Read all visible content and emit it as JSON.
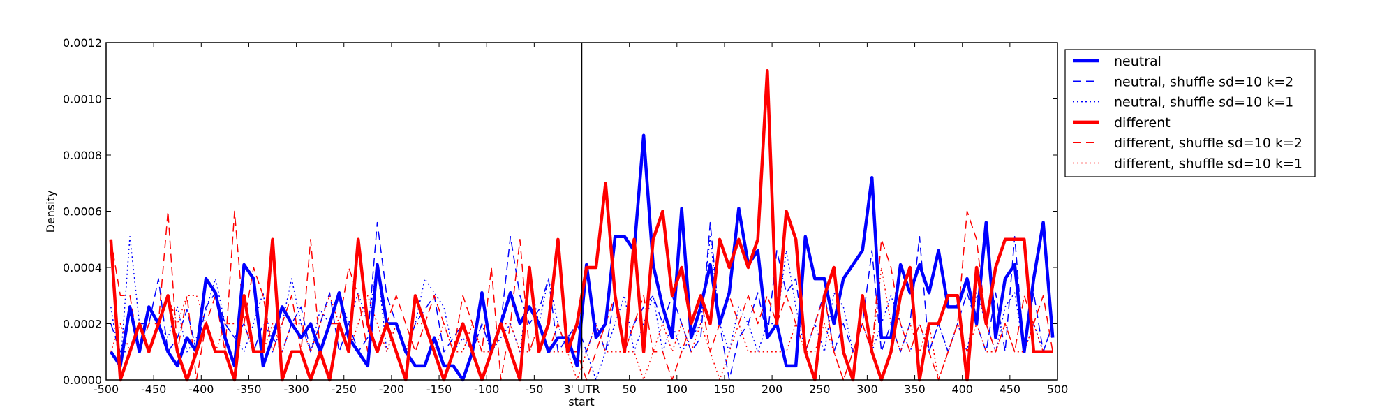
{
  "chart_data": {
    "type": "line",
    "xlabel": "start",
    "ylabel": "Density",
    "xlim": [
      -500,
      500
    ],
    "ylim": [
      0,
      0.0012
    ],
    "x_ticks": [
      {
        "value": -500,
        "label": "-500"
      },
      {
        "value": -450,
        "label": "-450"
      },
      {
        "value": -400,
        "label": "-400"
      },
      {
        "value": -350,
        "label": "-350"
      },
      {
        "value": -300,
        "label": "-300"
      },
      {
        "value": -250,
        "label": "-250"
      },
      {
        "value": -200,
        "label": "-200"
      },
      {
        "value": -150,
        "label": "-150"
      },
      {
        "value": -100,
        "label": "-100"
      },
      {
        "value": -50,
        "label": "-50"
      },
      {
        "value": 0,
        "label": "3' UTR"
      },
      {
        "value": 50,
        "label": "50"
      },
      {
        "value": 100,
        "label": "100"
      },
      {
        "value": 150,
        "label": "150"
      },
      {
        "value": 200,
        "label": "200"
      },
      {
        "value": 250,
        "label": "250"
      },
      {
        "value": 300,
        "label": "300"
      },
      {
        "value": 350,
        "label": "350"
      },
      {
        "value": 400,
        "label": "400"
      },
      {
        "value": 450,
        "label": "450"
      },
      {
        "value": 500,
        "label": "500"
      }
    ],
    "y_ticks": [
      {
        "value": 0,
        "label": "0.0000"
      },
      {
        "value": 0.0002,
        "label": "0.0002"
      },
      {
        "value": 0.0004,
        "label": "0.0004"
      },
      {
        "value": 0.0006,
        "label": "0.0006"
      },
      {
        "value": 0.0008,
        "label": "0.0008"
      },
      {
        "value": 0.001,
        "label": "0.0010"
      },
      {
        "value": 0.0012,
        "label": "0.0012"
      }
    ],
    "vline_x": 0,
    "grid": false,
    "legend_position": "outside-top-right",
    "x": [
      -495,
      -485,
      -475,
      -465,
      -455,
      -445,
      -435,
      -425,
      -415,
      -405,
      -395,
      -385,
      -375,
      -365,
      -355,
      -345,
      -335,
      -325,
      -315,
      -305,
      -295,
      -285,
      -275,
      -265,
      -255,
      -245,
      -235,
      -225,
      -215,
      -205,
      -195,
      -185,
      -175,
      -165,
      -155,
      -145,
      -135,
      -125,
      -115,
      -105,
      -95,
      -85,
      -75,
      -65,
      -55,
      -45,
      -35,
      -25,
      -15,
      -5,
      5,
      15,
      25,
      35,
      45,
      55,
      65,
      75,
      85,
      95,
      105,
      115,
      125,
      135,
      145,
      155,
      165,
      175,
      185,
      195,
      205,
      215,
      225,
      235,
      245,
      255,
      265,
      275,
      285,
      295,
      305,
      315,
      325,
      335,
      345,
      355,
      365,
      375,
      385,
      395,
      405,
      415,
      425,
      435,
      445,
      455,
      465,
      475,
      485,
      495
    ],
    "series": [
      {
        "name": "neutral",
        "color": "#0000ff",
        "line": "solid",
        "width": 4.5,
        "values": [
          0.0001,
          5e-05,
          0.00026,
          0.0001,
          0.00026,
          0.0002,
          0.0001,
          5e-05,
          0.00015,
          0.0001,
          0.00036,
          0.00031,
          0.00015,
          5e-05,
          0.00041,
          0.00036,
          5e-05,
          0.00015,
          0.00026,
          0.0002,
          0.00015,
          0.0002,
          0.0001,
          0.0002,
          0.00031,
          0.00015,
          0.0001,
          5e-05,
          0.00041,
          0.0002,
          0.0002,
          0.0001,
          5e-05,
          5e-05,
          0.00015,
          5e-05,
          5e-05,
          0,
          0.0001,
          0.00031,
          0.0001,
          0.0002,
          0.00031,
          0.0002,
          0.00026,
          0.0002,
          0.0001,
          0.00015,
          0.00015,
          5e-05,
          0.00041,
          0.00015,
          0.0002,
          0.00051,
          0.00051,
          0.00046,
          0.00087,
          0.00041,
          0.00026,
          0.00015,
          0.00061,
          0.00015,
          0.00026,
          0.00041,
          0.0002,
          0.00031,
          0.00061,
          0.00041,
          0.00046,
          0.00015,
          0.0002,
          5e-05,
          5e-05,
          0.00051,
          0.00036,
          0.00036,
          0.0002,
          0.00036,
          0.00041,
          0.00046,
          0.00072,
          0.00015,
          0.00015,
          0.00041,
          0.00031,
          0.00041,
          0.00031,
          0.00046,
          0.00026,
          0.00026,
          0.00036,
          0.0002,
          0.00056,
          0.00015,
          0.00036,
          0.00041,
          0.0001,
          0.00036,
          0.00056,
          0.00015
        ]
      },
      {
        "name": "neutral, shuffle sd=10 k=2",
        "color": "#0000ff",
        "line": "dashed",
        "width": 1.5,
        "values": [
          0.0002,
          0.0001,
          0.0001,
          0.0002,
          0.0002,
          0.00036,
          0.0001,
          0.00015,
          0.00025,
          0.0001,
          0.00026,
          0.00031,
          0.0002,
          0.00015,
          0.0002,
          0.0001,
          0.0002,
          0.00015,
          0.0001,
          0.0002,
          0.00026,
          0.0001,
          0.0002,
          0.00031,
          0.0001,
          0.0002,
          0.0001,
          0.00015,
          0.00056,
          0.0003,
          0.0002,
          0.0001,
          0.0002,
          0.00025,
          0.0003,
          0.0001,
          0.00015,
          0.0002,
          0.0001,
          0.0002,
          0.0001,
          0.0002,
          0.00051,
          0.0003,
          0.0002,
          0.00025,
          0.00036,
          0.0001,
          0.00015,
          0.0002,
          0.0001,
          0.0002,
          0.0001,
          0.00031,
          0.0001,
          0.0002,
          0.00026,
          0.0003,
          0.0002,
          0.0003,
          0.0002,
          0.0001,
          0.00015,
          0.00056,
          0.0002,
          0,
          0.00015,
          0.0002,
          0.00031,
          0.00015,
          0.00046,
          0.00031,
          0.00036,
          0.0001,
          0.0002,
          0.00031,
          0.0001,
          0.0002,
          0.0001,
          0.0002,
          0.00046,
          0.0001,
          0.0002,
          0.0001,
          0.0002,
          0.00051,
          0.0001,
          0.0002,
          0.0001,
          0.0002,
          0.00031,
          0.0002,
          0.0001,
          0.00031,
          0.0001,
          0.00051,
          0.0001,
          0.00031,
          0.0001,
          0.0002
        ]
      },
      {
        "name": "neutral, shuffle sd=10 k=1",
        "color": "#0000ff",
        "line": "dotted",
        "width": 1.5,
        "values": [
          0.00026,
          5e-05,
          0.00051,
          0.0002,
          0.0001,
          0.0002,
          0.00015,
          0.00026,
          0.0001,
          0.00015,
          0.00025,
          0.00036,
          0.0002,
          0.00015,
          0.0001,
          0.0002,
          0.00031,
          0.0001,
          0.0002,
          0.00036,
          0.0002,
          0.0001,
          0.00025,
          0.0002,
          0.0003,
          0.0002,
          0.00031,
          0.0002,
          0.00041,
          0.0001,
          0.0002,
          0.0001,
          0.0002,
          0.00036,
          0.00031,
          0.00026,
          0.0001,
          0.00015,
          0.0001,
          0.0002,
          0.0001,
          0.00015,
          0.0002,
          0.0001,
          0.00036,
          0.0002,
          0.00036,
          0.0002,
          0.0001,
          0.0001,
          0.0001,
          0,
          0.0001,
          0.0002,
          0.0003,
          0.0001,
          0.0002,
          0.0003,
          0.0001,
          0.0002,
          0.0001,
          0.00015,
          0.0002,
          0.00051,
          0.0002,
          0.0001,
          0.00026,
          0.0002,
          0.0001,
          0.0002,
          0.0002,
          0.00046,
          0.00026,
          0.0001,
          0.0002,
          0.0001,
          0.00031,
          0.00026,
          0.0001,
          0.0002,
          0.0001,
          0.0002,
          0.0003,
          0.0002,
          0.0001,
          0.0002,
          0.0001,
          0.0002,
          0.0001,
          0.0002,
          0.0001,
          0.00031,
          0.0002,
          0.0001,
          0.00026,
          0.00031,
          0.0001,
          0.0002,
          0.0001,
          0.0002
        ]
      },
      {
        "name": "different",
        "color": "#ff0000",
        "line": "solid",
        "width": 4.5,
        "values": [
          0.0005,
          0,
          0.0001,
          0.0002,
          0.0001,
          0.0002,
          0.0003,
          0.0001,
          0,
          0.0001,
          0.0002,
          0.0001,
          0.0001,
          0,
          0.0003,
          0.0001,
          0.0001,
          0.0005,
          0,
          0.0001,
          0.0001,
          0,
          0.0001,
          0,
          0.0002,
          0.0001,
          0.0005,
          0.0002,
          0.0001,
          0.0002,
          0.0001,
          0,
          0.0003,
          0.0002,
          0.0001,
          0,
          0.0001,
          0.0002,
          0.0001,
          0,
          0.0001,
          0.0002,
          0.0001,
          0,
          0.0004,
          0.0001,
          0.0002,
          0.0005,
          0.0001,
          0.0002,
          0.0004,
          0.0004,
          0.0007,
          0.0003,
          0.0001,
          0.0005,
          0.0001,
          0.0005,
          0.0006,
          0.0003,
          0.0004,
          0.0002,
          0.0003,
          0.0002,
          0.0005,
          0.0004,
          0.0005,
          0.0004,
          0.0005,
          0.0011,
          0.0002,
          0.0006,
          0.0005,
          0.0001,
          0,
          0.0003,
          0.0004,
          0.0001,
          0,
          0.0003,
          0.0001,
          0,
          0.0001,
          0.0003,
          0.0004,
          0,
          0.0002,
          0.0002,
          0.0003,
          0.0003,
          0,
          0.0004,
          0.0002,
          0.0004,
          0.0005,
          0.0005,
          0.0005,
          0.0001,
          0.0001,
          0.0001
        ]
      },
      {
        "name": "different, shuffle sd=10 k=2",
        "color": "#ff0000",
        "line": "dashed",
        "width": 1.5,
        "values": [
          0.0005,
          0.0003,
          0.0003,
          0.0001,
          0.0002,
          0.0002,
          0.0006,
          0.0001,
          0.0003,
          0,
          0.0002,
          0.0003,
          0.0001,
          0.0006,
          0.0002,
          0.0004,
          0.0003,
          0.0001,
          0.0002,
          0.0003,
          0.0001,
          0.0005,
          0.0001,
          0.0002,
          0.0002,
          0.0004,
          0.0003,
          0.0001,
          0.0004,
          0.0002,
          0.0003,
          0.0002,
          0.0001,
          0.0002,
          0.0003,
          0.0002,
          0.0001,
          0.0003,
          0.0002,
          0.0001,
          0.0004,
          0,
          0.0002,
          0.0005,
          0.0001,
          0.0002,
          0.0001,
          0.0002,
          0.0001,
          0.0001,
          0,
          0.0001,
          0.0002,
          0.0003,
          0.0001,
          0.0002,
          0.0003,
          0.0001,
          0.0001,
          0,
          0.0001,
          0.0002,
          0.0003,
          0.0001,
          0.0002,
          0.0003,
          0.0002,
          0.0003,
          0.0002,
          0.0003,
          0.0002,
          0.0003,
          0.0002,
          0.0001,
          0.0002,
          0.0003,
          0.0001,
          0,
          0.0001,
          0.0002,
          0.0001,
          0.0005,
          0.0004,
          0.0002,
          0.0001,
          0.0002,
          0.0001,
          0,
          0.0001,
          0.0002,
          0.0006,
          0.0005,
          0.0002,
          0.0001,
          0.0002,
          0.0001,
          0.0003,
          0.0002,
          0.0003,
          0.0001
        ]
      },
      {
        "name": "different, shuffle sd=10 k=1",
        "color": "#ff0000",
        "line": "dotted",
        "width": 1.5,
        "values": [
          0.0001,
          0.0002,
          0.0001,
          0.0002,
          0.0001,
          0.0002,
          0.0003,
          0.0002,
          0.0003,
          0.0003,
          0.0002,
          0.0001,
          0.0002,
          0.0002,
          0.0002,
          0.0001,
          0.0001,
          0.0002,
          0.0001,
          0.0002,
          0.0002,
          0.0001,
          0.0002,
          0.0003,
          0.0002,
          0.0001,
          0.0002,
          0.0003,
          0.0002,
          0.0001,
          0.0002,
          0.0001,
          0.0002,
          0.0002,
          0.0001,
          0.0002,
          0.0001,
          0.0001,
          0.0002,
          0.0001,
          0.0001,
          0.0002,
          0.0002,
          0.0001,
          0.0001,
          0.0002,
          0.0001,
          0.0001,
          0.0001,
          0,
          0.0001,
          0.0002,
          0.0001,
          0.0001,
          0.0001,
          0.0001,
          0,
          0.0001,
          0.0002,
          0.0001,
          0.0002,
          0.0001,
          0.0002,
          0.0001,
          0,
          0.0001,
          0.0002,
          0.0001,
          0.0001,
          0.0001,
          0.0001,
          0.0001,
          0.0002,
          0.0001,
          0.0001,
          0.0002,
          0.0001,
          0,
          0.0001,
          0.0002,
          0.0001,
          0.0004,
          0.0002,
          0.0001,
          0.0002,
          0.0001,
          0.0002,
          0,
          0.0001,
          0.0002,
          0.0001,
          0.0002,
          0.0001,
          0.0001,
          0.0002,
          0.0001,
          0.0001,
          0.0002,
          0.0001,
          0.0001
        ]
      }
    ]
  }
}
